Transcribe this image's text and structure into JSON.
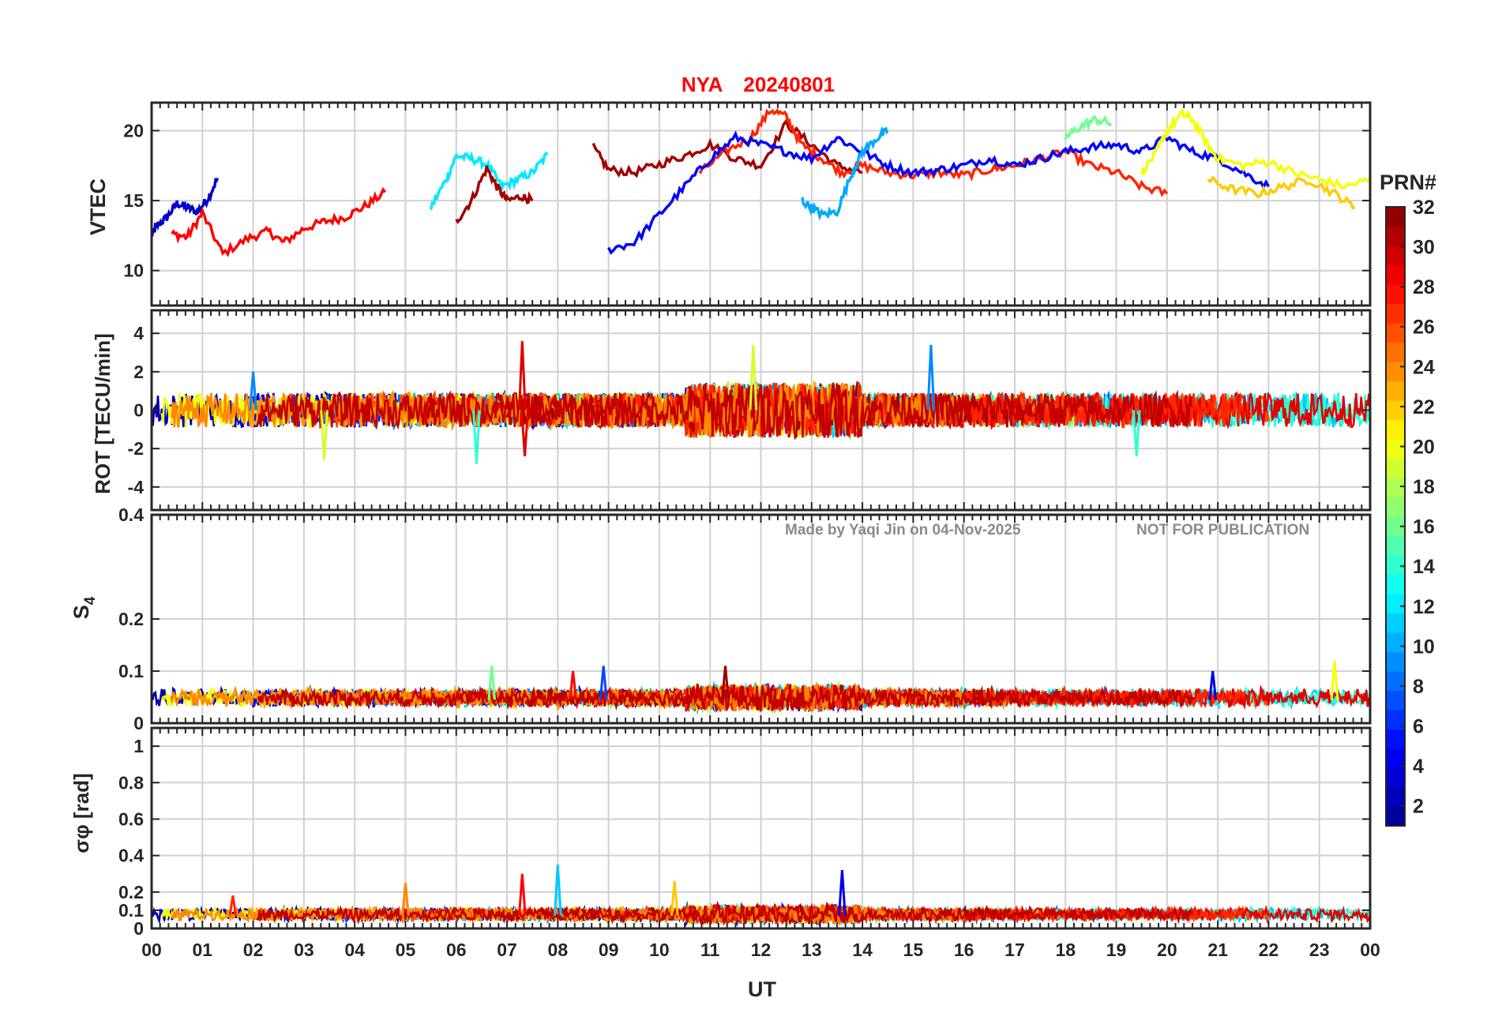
{
  "title": {
    "station": "NYA",
    "date": "20240801"
  },
  "watermark": {
    "author": "Made by Yaqi Jin on 04-Nov-2025",
    "notice": "NOT FOR PUBLICATION"
  },
  "xaxis": {
    "label": "UT",
    "range": [
      0,
      24
    ],
    "ticks": [
      0,
      1,
      2,
      3,
      4,
      5,
      6,
      7,
      8,
      9,
      10,
      11,
      12,
      13,
      14,
      15,
      16,
      17,
      18,
      19,
      20,
      21,
      22,
      23,
      24
    ],
    "tick_labels": [
      "00",
      "01",
      "02",
      "03",
      "04",
      "05",
      "06",
      "07",
      "08",
      "09",
      "10",
      "11",
      "12",
      "13",
      "14",
      "15",
      "16",
      "17",
      "18",
      "19",
      "20",
      "21",
      "22",
      "23",
      "00"
    ]
  },
  "colorbar": {
    "title": "PRN#",
    "range": [
      1,
      32
    ],
    "ticks": [
      2,
      4,
      6,
      8,
      10,
      12,
      14,
      16,
      18,
      20,
      22,
      24,
      26,
      28,
      30,
      32
    ],
    "tick_labels": [
      "2",
      "4",
      "6",
      "8",
      "10",
      "12",
      "14",
      "16",
      "18",
      "20",
      "22",
      "24",
      "26",
      "28",
      "30",
      "32"
    ],
    "colormap": "jet",
    "colors": [
      "#00008f",
      "#0000ff",
      "#0080ff",
      "#00ffff",
      "#80ff80",
      "#ffff00",
      "#ff8000",
      "#ff0000",
      "#800000"
    ]
  },
  "chart_data": [
    {
      "type": "line",
      "panel": "VTEC",
      "ylabel": "VTEC",
      "ylim": [
        7.5,
        22
      ],
      "yticks": [
        10,
        15,
        20
      ],
      "ytick_labels": [
        "10",
        "15",
        "20"
      ],
      "grid": true,
      "description_series": "one line per PRN 1-32, colored by PRN",
      "series": [
        {
          "prn": 3,
          "x": [
            0,
            0.1,
            0.3,
            0.5,
            0.7,
            0.9,
            1.1,
            1.3
          ],
          "y": [
            12.5,
            13.2,
            13.8,
            14.8,
            14.5,
            14.2,
            15.1,
            16.6
          ]
        },
        {
          "prn": 28,
          "x": [
            0.4,
            0.7,
            1.0,
            1.4,
            1.9,
            2.3,
            2.6,
            3.0,
            3.4,
            3.8,
            4.2,
            4.6
          ],
          "y": [
            12.6,
            12.4,
            14.1,
            11.2,
            12.3,
            12.8,
            12.0,
            13.0,
            13.5,
            13.8,
            14.6,
            15.6
          ]
        },
        {
          "prn": 12,
          "x": [
            5.5,
            5.8,
            6.0,
            6.3,
            6.6,
            6.9,
            7.2,
            7.5,
            7.8
          ],
          "y": [
            14.5,
            16.5,
            18.2,
            18.0,
            17.6,
            16.0,
            16.5,
            17.0,
            18.3
          ]
        },
        {
          "prn": 31,
          "x": [
            6.0,
            6.3,
            6.6,
            6.8,
            7.0,
            7.3,
            7.5
          ],
          "y": [
            13.5,
            15.0,
            17.3,
            16.0,
            15.0,
            15.3,
            15.0
          ]
        },
        {
          "prn": 31,
          "x": [
            8.7,
            9.0,
            9.5,
            10.0,
            10.5,
            11.0,
            11.5,
            12.0,
            12.5,
            13.0,
            13.5,
            14.0
          ],
          "y": [
            18.8,
            17.2,
            17.0,
            17.6,
            18.2,
            19.0,
            18.0,
            17.5,
            20.5,
            19.0,
            17.5,
            17.0
          ]
        },
        {
          "prn": 27,
          "x": [
            10.8,
            11.3,
            11.8,
            12.2,
            12.5,
            12.8,
            13.2,
            13.6,
            14.0,
            14.5,
            15.0,
            15.5,
            16.0,
            16.5,
            17.0,
            17.5,
            18.0,
            18.5,
            19.0,
            19.5,
            20.0
          ],
          "y": [
            17.0,
            18.5,
            19.5,
            21.5,
            21.0,
            19.0,
            18.0,
            17.0,
            17.5,
            17.0,
            16.8,
            17.0,
            16.8,
            17.2,
            17.5,
            18.0,
            18.5,
            17.5,
            17.0,
            16.0,
            15.5
          ]
        },
        {
          "prn": 5,
          "x": [
            9.0,
            9.5,
            10.0,
            10.5,
            11.0,
            11.5,
            12.0,
            12.5,
            13.0,
            13.5,
            14.0,
            14.5,
            15.0,
            15.5,
            16.0,
            16.5,
            17.0,
            17.5,
            18.0,
            18.5,
            19.0,
            19.5,
            20.0,
            20.5,
            21.0,
            21.5,
            22.0
          ],
          "y": [
            11.5,
            12.0,
            14.0,
            16.0,
            18.0,
            19.5,
            19.0,
            18.5,
            18.0,
            19.5,
            18.5,
            17.5,
            17.0,
            17.2,
            17.5,
            18.0,
            17.5,
            18.0,
            18.5,
            18.8,
            19.0,
            18.5,
            19.5,
            18.5,
            18.0,
            17.0,
            16.0
          ]
        },
        {
          "prn": 20,
          "x": [
            19.5,
            19.8,
            20.0,
            20.3,
            20.5,
            20.8,
            21.0,
            21.5,
            22.0,
            22.5,
            23.0,
            23.5,
            24.0
          ],
          "y": [
            17.0,
            18.5,
            20.0,
            21.2,
            20.8,
            19.0,
            18.0,
            17.5,
            17.8,
            17.0,
            16.5,
            16.0,
            16.5
          ]
        },
        {
          "prn": 10,
          "x": [
            12.8,
            13.0,
            13.2,
            13.5,
            13.8,
            14.0,
            14.3,
            14.5
          ],
          "y": [
            15.0,
            14.5,
            14.0,
            14.2,
            17.0,
            18.5,
            19.5,
            20.0
          ]
        },
        {
          "prn": 16,
          "x": [
            18.0,
            18.3,
            18.6,
            18.9
          ],
          "y": [
            19.5,
            20.3,
            20.8,
            20.5
          ]
        },
        {
          "prn": 22,
          "x": [
            20.8,
            21.3,
            21.8,
            22.3,
            22.8,
            23.3,
            23.7
          ],
          "y": [
            16.5,
            15.8,
            15.5,
            16.0,
            16.5,
            15.5,
            14.5
          ]
        }
      ]
    },
    {
      "type": "line",
      "panel": "ROT",
      "ylabel": "ROT [TECU/min]",
      "ylim": [
        -5.2,
        5.2
      ],
      "yticks": [
        -4,
        -2,
        0,
        2,
        4
      ],
      "ytick_labels": [
        "-4",
        "-2",
        "0",
        "2",
        "4"
      ],
      "grid": true,
      "description_series": "noisy rate of TEC per PRN scattered around 0 with spikes",
      "spikes": [
        {
          "prn": 29,
          "x": 7.3,
          "y": 3.6
        },
        {
          "prn": 29,
          "x": 7.35,
          "y": -2.4
        },
        {
          "prn": 19,
          "x": 11.85,
          "y": 3.4
        },
        {
          "prn": 9,
          "x": 15.35,
          "y": 3.4
        },
        {
          "prn": 14,
          "x": 6.4,
          "y": -2.8
        },
        {
          "prn": 19,
          "x": 3.4,
          "y": -2.6
        },
        {
          "prn": 9,
          "x": 2.0,
          "y": 2.0
        },
        {
          "prn": 14,
          "x": 19.4,
          "y": -2.4
        }
      ]
    },
    {
      "type": "line",
      "panel": "S4",
      "ylabel": "S4",
      "ylim": [
        0,
        0.4
      ],
      "yticks": [
        0,
        0.1,
        0.2,
        0.4
      ],
      "ytick_labels": [
        "0",
        "0.1",
        "0.2",
        "0.4"
      ],
      "grid": true,
      "description_series": "amplitude scintillation index per PRN, baseline about 0.03-0.06",
      "peaks": [
        {
          "prn": 16,
          "x": 6.7,
          "y": 0.11
        },
        {
          "prn": 7,
          "x": 8.9,
          "y": 0.11
        },
        {
          "prn": 31,
          "x": 11.3,
          "y": 0.11
        },
        {
          "prn": 20,
          "x": 23.3,
          "y": 0.12
        },
        {
          "prn": 4,
          "x": 20.9,
          "y": 0.1
        },
        {
          "prn": 28,
          "x": 8.3,
          "y": 0.1
        }
      ]
    },
    {
      "type": "line",
      "panel": "sigma_phi",
      "ylabel": "σφ [rad]",
      "ylim": [
        0,
        1.1
      ],
      "yticks": [
        0,
        0.1,
        0.2,
        0.4,
        0.6,
        0.8,
        1
      ],
      "ytick_labels": [
        "0",
        "0.1",
        "0.2",
        "0.4",
        "0.6",
        "0.8",
        "1"
      ],
      "grid": true,
      "description_series": "phase scintillation index per PRN, baseline about 0.05-0.12",
      "peaks": [
        {
          "prn": 28,
          "x": 7.3,
          "y": 0.3
        },
        {
          "prn": 11,
          "x": 8.0,
          "y": 0.35
        },
        {
          "prn": 4,
          "x": 13.6,
          "y": 0.32
        },
        {
          "prn": 22,
          "x": 10.3,
          "y": 0.26
        },
        {
          "prn": 24,
          "x": 5.0,
          "y": 0.25
        },
        {
          "prn": 27,
          "x": 1.6,
          "y": 0.18
        }
      ]
    }
  ]
}
